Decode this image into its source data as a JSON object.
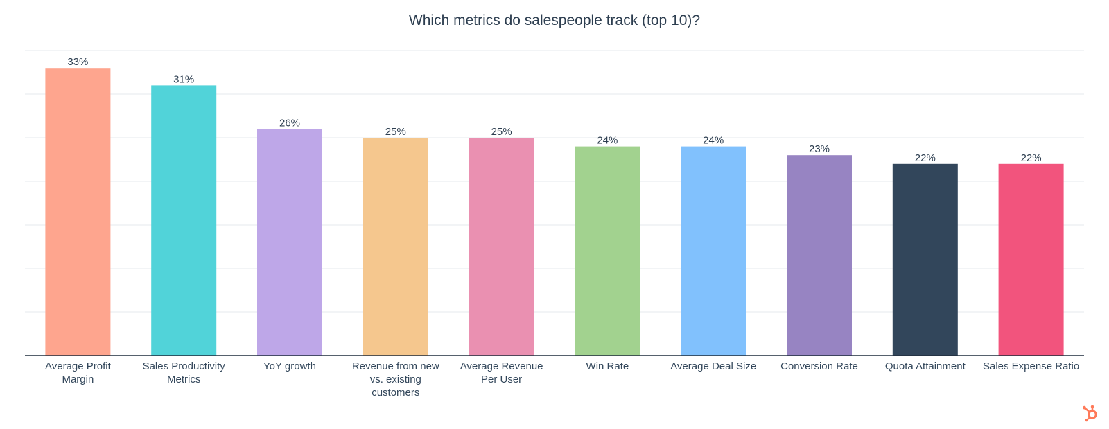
{
  "chart_data": {
    "type": "bar",
    "title": "Which metrics do salespeople track (top 10)?",
    "categories": [
      "Average Profit Margin",
      "Sales Productivity Metrics",
      "YoY growth",
      "Revenue from new vs. existing customers",
      "Average Revenue Per User",
      "Win Rate",
      "Average Deal Size",
      "Conversion Rate",
      "Quota Attainment",
      "Sales Expense Ratio"
    ],
    "category_lines": [
      [
        "Average Profit",
        "Margin"
      ],
      [
        "Sales Productivity",
        "Metrics"
      ],
      [
        "YoY growth"
      ],
      [
        "Revenue from new",
        "vs. existing",
        "customers"
      ],
      [
        "Average Revenue",
        "Per User"
      ],
      [
        "Win Rate"
      ],
      [
        "Average Deal Size"
      ],
      [
        "Conversion Rate"
      ],
      [
        "Quota Attainment"
      ],
      [
        "Sales Expense Ratio"
      ]
    ],
    "values": [
      33,
      31,
      26,
      25,
      25,
      24,
      24,
      23,
      22,
      22
    ],
    "value_labels": [
      "33%",
      "31%",
      "26%",
      "25%",
      "25%",
      "24%",
      "24%",
      "23%",
      "22%",
      "22%"
    ],
    "colors": [
      "#fea58e",
      "#51d3d9",
      "#bea7e8",
      "#f5c78e",
      "#ea90b1",
      "#a2d28f",
      "#81c1fd",
      "#9784c2",
      "#32465b",
      "#f2547d"
    ],
    "xlabel": "",
    "ylabel": "",
    "ylim": [
      0,
      35
    ],
    "grid": true,
    "legend": "none"
  },
  "brand": {
    "logo_icon": "hubspot-sprocket-icon",
    "logo_color": "#ff7a59"
  }
}
